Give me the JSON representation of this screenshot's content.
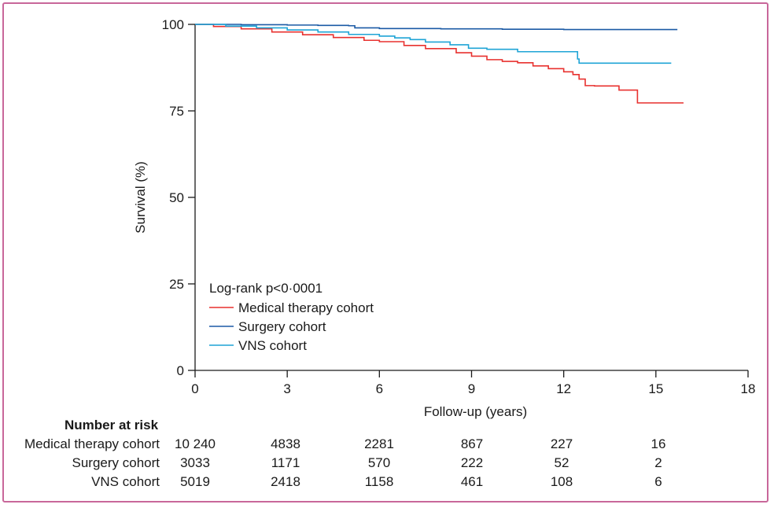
{
  "chart_data": {
    "type": "line",
    "step": true,
    "xlabel": "Follow-up (years)",
    "ylabel": "Survival (%)",
    "xlim": [
      0,
      18
    ],
    "ylim": [
      0,
      100
    ],
    "xticks": [
      0,
      3,
      6,
      9,
      12,
      15,
      18
    ],
    "yticks": [
      0,
      25,
      50,
      75,
      100
    ],
    "grid": false,
    "annotation": "Log-rank p<0·0001",
    "legend_position": "lower-left",
    "series": [
      {
        "name": "Medical therapy cohort",
        "color": "#e8312f",
        "points": [
          [
            0,
            100
          ],
          [
            0.6,
            99.4
          ],
          [
            1.5,
            98.7
          ],
          [
            2.5,
            97.8
          ],
          [
            3.5,
            97.0
          ],
          [
            4.5,
            96.2
          ],
          [
            5.5,
            95.4
          ],
          [
            6.0,
            95.0
          ],
          [
            6.8,
            93.9
          ],
          [
            7.5,
            93.0
          ],
          [
            8.5,
            91.8
          ],
          [
            9.0,
            90.8
          ],
          [
            9.5,
            89.8
          ],
          [
            10.0,
            89.3
          ],
          [
            10.5,
            88.9
          ],
          [
            11.0,
            88.0
          ],
          [
            11.5,
            87.2
          ],
          [
            12.0,
            86.3
          ],
          [
            12.3,
            85.5
          ],
          [
            12.5,
            84.2
          ],
          [
            12.7,
            82.3
          ],
          [
            13.0,
            82.2
          ],
          [
            13.8,
            81.0
          ],
          [
            14.4,
            77.3
          ],
          [
            15.0,
            77.3
          ],
          [
            15.9,
            77.3
          ]
        ]
      },
      {
        "name": "Surgery cohort",
        "color": "#1b5aa5",
        "points": [
          [
            0,
            100
          ],
          [
            1.5,
            99.9
          ],
          [
            3.0,
            99.8
          ],
          [
            4.0,
            99.7
          ],
          [
            5.0,
            99.6
          ],
          [
            5.2,
            99.0
          ],
          [
            6.0,
            98.8
          ],
          [
            8.0,
            98.7
          ],
          [
            10.0,
            98.6
          ],
          [
            12.0,
            98.5
          ],
          [
            14.0,
            98.5
          ],
          [
            15.7,
            98.5
          ]
        ]
      },
      {
        "name": "VNS cohort",
        "color": "#1fa4d6",
        "points": [
          [
            0,
            100
          ],
          [
            1.0,
            99.5
          ],
          [
            2.0,
            99.0
          ],
          [
            3.0,
            98.4
          ],
          [
            4.0,
            97.8
          ],
          [
            5.0,
            97.1
          ],
          [
            6.0,
            96.6
          ],
          [
            6.5,
            96.1
          ],
          [
            7.0,
            95.6
          ],
          [
            7.5,
            94.9
          ],
          [
            8.3,
            94.1
          ],
          [
            8.9,
            93.1
          ],
          [
            9.5,
            92.8
          ],
          [
            10.5,
            92.1
          ],
          [
            11.5,
            92.1
          ],
          [
            12.4,
            92.1
          ],
          [
            12.45,
            90.0
          ],
          [
            12.5,
            88.8
          ],
          [
            13.5,
            88.8
          ],
          [
            15.5,
            88.8
          ]
        ]
      }
    ]
  },
  "risk_table": {
    "title": "Number at risk",
    "rows": [
      {
        "label": "Medical therapy cohort",
        "values": [
          "10 240",
          "4838",
          "2281",
          "867",
          "227",
          "16"
        ]
      },
      {
        "label": "Surgery cohort",
        "values": [
          "3033",
          "1171",
          "570",
          "222",
          "52",
          "2"
        ]
      },
      {
        "label": "VNS cohort",
        "values": [
          "5019",
          "2418",
          "1158",
          "461",
          "108",
          "6"
        ]
      }
    ]
  }
}
